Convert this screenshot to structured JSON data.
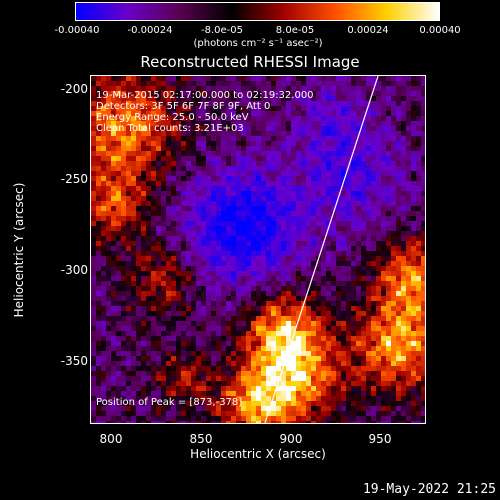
{
  "colorbar": {
    "labels": [
      "-0.00040",
      "-0.00024",
      "-8.0e-05",
      "8.0e-05",
      "0.00024",
      "0.00040"
    ],
    "units": "(photons cm⁻² s⁻¹ asec⁻²)",
    "range": [
      -0.0004,
      0.0004
    ],
    "colors": [
      "#0000ff",
      "#6a00c8",
      "#5a0050",
      "#000000",
      "#a00000",
      "#ff5000",
      "#ffd000",
      "#ffffff"
    ]
  },
  "chart_data": {
    "type": "heatmap",
    "title": "Reconstructed RHESSI Image",
    "xlabel": "Heliocentric X (arcsec)",
    "ylabel": "Heliocentric Y (arcsec)",
    "xlim": [
      781,
      973
    ],
    "ylim": [
      -384,
      -189
    ],
    "xticks": [
      "800",
      "850",
      "900",
      "950"
    ],
    "yticks": [
      "-200",
      "-250",
      "-300",
      "-350"
    ],
    "limb_line": [
      [
        881,
        -384
      ],
      [
        946,
        -189
      ]
    ],
    "annotations": {
      "time": "19-Mar-2015 02:17:00.000 to 02:19:32.000",
      "detectors": "Detectors: 3F 5F 6F 7F 8F 9F, Att 0",
      "energy": "Energy Range: 25.0 - 50.0 keV",
      "clean": "Clean     Total counts: 3.21E+03",
      "peak": "Position of Peak = [873,-378]"
    }
  },
  "footer": {
    "date": "19-May-2022 21:25"
  }
}
